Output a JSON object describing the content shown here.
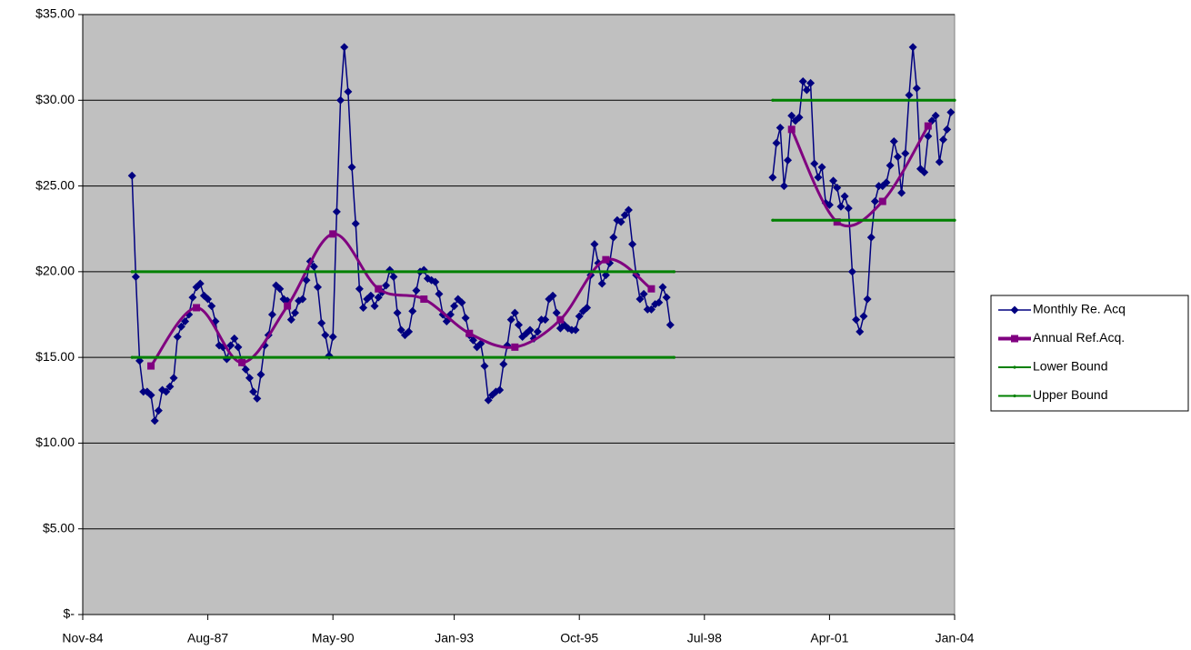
{
  "chart_data": {
    "type": "line",
    "xlim": [
      "1984-11",
      "2004-01"
    ],
    "xticks": [
      {
        "value": "1984-11",
        "label": "Nov-84"
      },
      {
        "value": "1987-08",
        "label": "Aug-87"
      },
      {
        "value": "1990-05",
        "label": "May-90"
      },
      {
        "value": "1993-01",
        "label": "Jan-93"
      },
      {
        "value": "1995-10",
        "label": "Oct-95"
      },
      {
        "value": "1998-07",
        "label": "Jul-98"
      },
      {
        "value": "2001-04",
        "label": "Apr-01"
      },
      {
        "value": "2004-01",
        "label": "Jan-04"
      }
    ],
    "ylim": [
      0,
      35
    ],
    "yticks": [
      {
        "value": 0,
        "label": "$-"
      },
      {
        "value": 5,
        "label": "$5.00"
      },
      {
        "value": 10,
        "label": "$10.00"
      },
      {
        "value": 15,
        "label": "$15.00"
      },
      {
        "value": 20,
        "label": "$20.00"
      },
      {
        "value": 25,
        "label": "$25.00"
      },
      {
        "value": 30,
        "label": "$30.00"
      },
      {
        "value": 35,
        "label": "$35.00"
      }
    ],
    "grid": true,
    "legend": "right",
    "x": [
      "1985-12",
      "1986-01",
      "1986-02",
      "1986-03",
      "1986-04",
      "1986-05",
      "1986-06",
      "1986-07",
      "1986-08",
      "1986-09",
      "1986-10",
      "1986-11",
      "1986-12",
      "1987-01",
      "1987-02",
      "1987-03",
      "1987-04",
      "1987-05",
      "1987-06",
      "1987-07",
      "1987-08",
      "1987-09",
      "1987-10",
      "1987-11",
      "1987-12",
      "1988-01",
      "1988-02",
      "1988-03",
      "1988-04",
      "1988-05",
      "1988-06",
      "1988-07",
      "1988-08",
      "1988-09",
      "1988-10",
      "1988-11",
      "1988-12",
      "1989-01",
      "1989-02",
      "1989-03",
      "1989-04",
      "1989-05",
      "1989-06",
      "1989-07",
      "1989-08",
      "1989-09",
      "1989-10",
      "1989-11",
      "1989-12",
      "1990-01",
      "1990-02",
      "1990-03",
      "1990-04",
      "1990-05",
      "1990-06",
      "1990-07",
      "1990-08",
      "1990-09",
      "1990-10",
      "1990-11",
      "1990-12",
      "1991-01",
      "1991-02",
      "1991-03",
      "1991-04",
      "1991-05",
      "1991-06",
      "1991-07",
      "1991-08",
      "1991-09",
      "1991-10",
      "1991-11",
      "1991-12",
      "1992-01",
      "1992-02",
      "1992-03",
      "1992-04",
      "1992-05",
      "1992-06",
      "1992-07",
      "1992-08",
      "1992-09",
      "1992-10",
      "1992-11",
      "1992-12",
      "1993-01",
      "1993-02",
      "1993-03",
      "1993-04",
      "1993-05",
      "1993-06",
      "1993-07",
      "1993-08",
      "1993-09",
      "1993-10",
      "1993-11",
      "1993-12",
      "1994-01",
      "1994-02",
      "1994-03",
      "1994-04",
      "1994-05",
      "1994-06",
      "1994-07",
      "1994-08",
      "1994-09",
      "1994-10",
      "1994-11",
      "1994-12",
      "1995-01",
      "1995-02",
      "1995-03",
      "1995-04",
      "1995-05",
      "1995-06",
      "1995-07",
      "1995-08",
      "1995-09",
      "1995-10",
      "1995-11",
      "1995-12",
      "1996-01",
      "1996-02",
      "1996-03",
      "1996-04",
      "1996-05",
      "1996-06",
      "1996-07",
      "1996-08",
      "1996-09",
      "1996-10",
      "1996-11",
      "1996-12",
      "1997-01",
      "1997-02",
      "1997-03",
      "1997-04",
      "1997-05",
      "1997-06",
      "1997-07",
      "1997-08",
      "1997-09",
      "1997-10",
      "1998-11",
      "2000-01",
      "2000-02",
      "2000-03",
      "2000-04",
      "2000-05",
      "2000-06",
      "2000-07",
      "2000-08",
      "2000-09",
      "2000-10",
      "2000-11",
      "2000-12",
      "2001-01",
      "2001-02",
      "2001-03",
      "2001-04",
      "2001-05",
      "2001-06",
      "2001-07",
      "2001-08",
      "2001-09",
      "2001-10",
      "2001-11",
      "2001-12",
      "2002-01",
      "2002-02",
      "2002-03",
      "2002-04",
      "2002-05",
      "2002-06",
      "2002-07",
      "2002-08",
      "2002-09",
      "2002-10",
      "2002-11",
      "2002-12",
      "2003-01",
      "2003-02",
      "2003-03",
      "2003-04",
      "2003-05",
      "2003-06",
      "2003-07",
      "2003-08",
      "2003-09",
      "2003-10",
      "2003-11",
      "2003-12"
    ],
    "series": [
      {
        "name": "Monthly Re. Acq",
        "color": "#000080",
        "marker": "diamond",
        "values": [
          25.6,
          19.7,
          14.8,
          13.0,
          13.0,
          12.8,
          11.3,
          11.9,
          13.1,
          13.0,
          13.3,
          13.8,
          16.2,
          16.8,
          17.1,
          17.5,
          18.5,
          19.1,
          19.3,
          18.6,
          18.4,
          18.0,
          17.1,
          15.7,
          15.6,
          14.9,
          15.7,
          16.1,
          15.6,
          14.7,
          14.3,
          13.8,
          13.0,
          12.6,
          14.0,
          15.7,
          16.3,
          17.5,
          19.2,
          19.0,
          18.4,
          18.3,
          17.2,
          17.6,
          18.3,
          18.4,
          19.5,
          20.6,
          20.3,
          19.1,
          17.0,
          16.3,
          15.1,
          16.2,
          23.5,
          30.0,
          33.1,
          30.5,
          26.1,
          22.8,
          19.0,
          17.9,
          18.4,
          18.6,
          18.0,
          18.5,
          18.8,
          19.2,
          20.1,
          19.7,
          17.6,
          16.6,
          16.3,
          16.5,
          17.7,
          18.9,
          20.0,
          20.1,
          19.6,
          19.5,
          19.4,
          18.7,
          17.5,
          17.1,
          17.5,
          18.0,
          18.4,
          18.2,
          17.3,
          16.3,
          16.0,
          15.6,
          15.8,
          14.5,
          12.5,
          12.8,
          13.0,
          13.1,
          14.6,
          15.7,
          17.2,
          17.6,
          16.9,
          16.2,
          16.4,
          16.6,
          16.1,
          16.5,
          17.2,
          17.2,
          18.4,
          18.6,
          17.6,
          16.7,
          16.9,
          16.7,
          16.6,
          16.6,
          17.4,
          17.7,
          17.9,
          19.8,
          21.6,
          20.5,
          19.3,
          19.8,
          20.5,
          22.0,
          23.0,
          22.9,
          23.3,
          23.6,
          21.6,
          19.8,
          18.4,
          18.7,
          17.8,
          17.8,
          18.1,
          18.2,
          19.1,
          18.5,
          16.9,
          null,
          25.5,
          27.5,
          28.4,
          25.0,
          26.5,
          29.1,
          28.8,
          29.0,
          31.1,
          30.6,
          31.0,
          26.3,
          25.5,
          26.1,
          24.0,
          23.9,
          25.3,
          24.9,
          23.8,
          24.4,
          23.7,
          20.0,
          17.2,
          16.5,
          17.4,
          18.4,
          22.0,
          24.1,
          25.0,
          25.0,
          25.2,
          26.2,
          27.6,
          26.7,
          24.6,
          26.9,
          30.3,
          33.1,
          30.7,
          26.0,
          25.8,
          27.9,
          28.8,
          29.1,
          26.4,
          27.7,
          28.3,
          29.3
        ]
      },
      {
        "name": "Annual Ref.Acq.",
        "color": "#800080",
        "marker": "square",
        "smooth": true,
        "x": [
          "1986-05",
          "1987-05",
          "1988-05",
          "1989-05",
          "1990-05",
          "1991-05",
          "1992-05",
          "1993-05",
          "1994-05",
          "1995-05",
          "1996-05",
          "1997-05",
          "1998-11",
          "2000-06",
          "2001-06",
          "2002-06",
          "2003-06"
        ],
        "values": [
          14.5,
          17.9,
          14.7,
          18.0,
          22.2,
          19.0,
          18.4,
          16.4,
          15.6,
          17.2,
          20.7,
          19.0,
          null,
          28.3,
          22.9,
          24.1,
          28.5
        ]
      },
      {
        "name": "Lower Bound",
        "color": "#008000",
        "marker": "dot",
        "x": [
          "1985-12",
          "1997-11",
          "1998-11",
          "2000-01",
          "2004-01"
        ],
        "values": [
          15,
          15,
          null,
          23,
          23
        ]
      },
      {
        "name": "Upper Bound",
        "color": "#008000",
        "marker": "dot",
        "x": [
          "1985-12",
          "1997-11",
          "1998-11",
          "2000-01",
          "2004-01"
        ],
        "values": [
          20,
          20,
          null,
          30,
          30
        ]
      }
    ]
  }
}
